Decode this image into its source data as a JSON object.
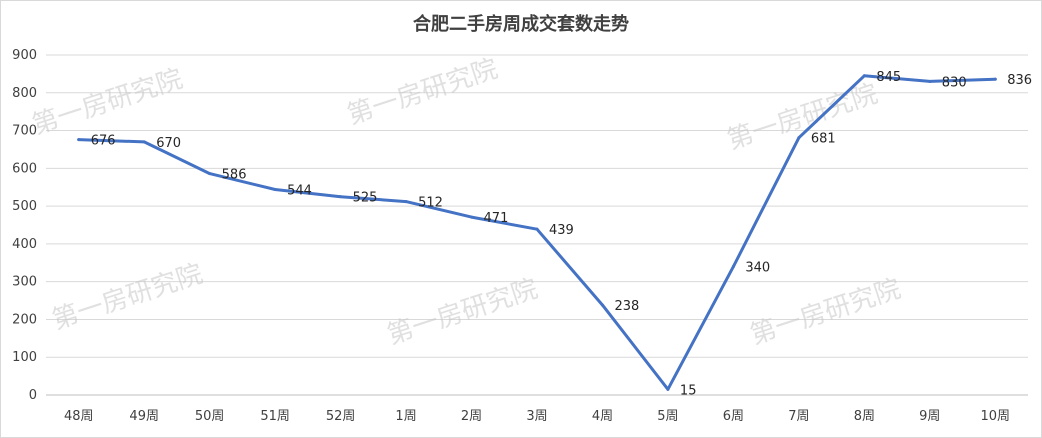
{
  "chart_data": {
    "type": "line",
    "title": "合肥二手房周成交套数走势",
    "categories": [
      "48周",
      "49周",
      "50周",
      "51周",
      "52周",
      "1周",
      "2周",
      "3周",
      "4周",
      "5周",
      "6周",
      "7周",
      "8周",
      "9周",
      "10周"
    ],
    "series": [
      {
        "values": [
          676,
          670,
          586,
          544,
          525,
          512,
          471,
          439,
          238,
          15,
          340,
          681,
          845,
          830,
          836
        ]
      }
    ],
    "ylim": [
      0,
      900
    ],
    "yticks": [
      0,
      100,
      200,
      300,
      400,
      500,
      600,
      700,
      800,
      900
    ],
    "grid": true,
    "legend": "none",
    "line_color": "#4472C4"
  },
  "watermark": "第一房研究院"
}
